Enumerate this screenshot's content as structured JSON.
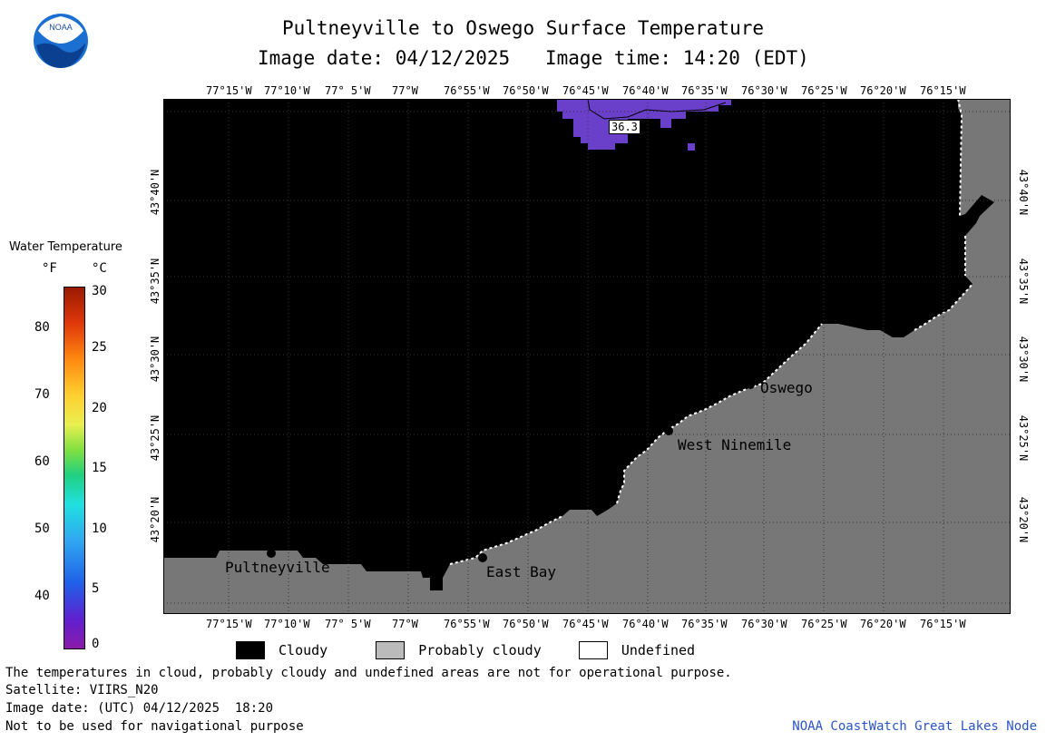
{
  "header": {
    "title": "Pultneyville to Oswego Surface Temperature",
    "date_line": "Image date: 04/12/2025",
    "time_line": "Image time: 14:20 (EDT)"
  },
  "logo": {
    "text": "NOAA"
  },
  "axes": {
    "lon_labels": [
      "77°15'W",
      "77°10'W",
      "77° 5'W",
      "77°W",
      "76°55'W",
      "76°50'W",
      "76°45'W",
      "76°40'W",
      "76°35'W",
      "76°30'W",
      "76°25'W",
      "76°20'W",
      "76°15'W"
    ],
    "lat_labels": [
      "43°40'N",
      "43°35'N",
      "43°30'N",
      "43°25'N",
      "43°20'N"
    ]
  },
  "places": {
    "pultneyville": "Pultneyville",
    "east_bay": "East Bay",
    "west_ninemile": "West Ninemile",
    "oswego": "Oswego"
  },
  "contour_label": "36.3",
  "colorbar": {
    "title": "Water Temperature",
    "unit_f": "°F",
    "unit_c": "°C",
    "f_ticks": [
      "80",
      "70",
      "60",
      "50",
      "40"
    ],
    "c_ticks": [
      "30",
      "25",
      "20",
      "15",
      "10",
      "5",
      "0"
    ]
  },
  "legend": {
    "cloudy": "Cloudy",
    "probably_cloudy": "Probably cloudy",
    "undefined": "Undefined"
  },
  "notes": {
    "disclaimer": "The temperatures in cloud, probably cloudy and undefined areas are not for operational purpose.",
    "satellite": "Satellite: VIIRS_N20",
    "utc_date": "Image date: (UTC) 04/12/2025  18:20",
    "navigation": "Not to be used for navigational purpose",
    "credit": "NOAA CoastWatch Great Lakes Node"
  },
  "colors": {
    "cloudy": "#000000",
    "land": "#777777",
    "probably_cloudy": "#bbbbbb",
    "undefined": "#ffffff",
    "water_cold": "#6a3fc9"
  }
}
